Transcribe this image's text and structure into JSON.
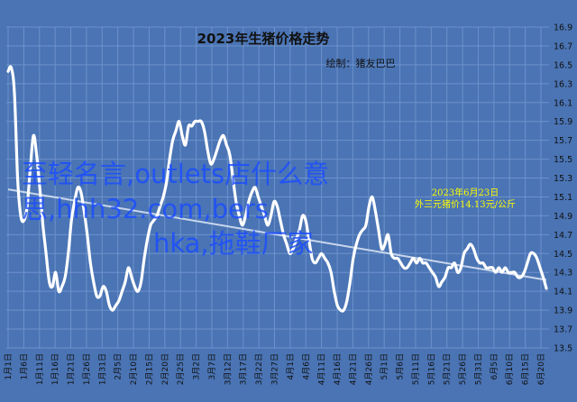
{
  "chart_data": {
    "type": "line",
    "title": "2023年生猪价格走势",
    "subtitle": "绘制：猪友巴巴",
    "xlabel": "",
    "ylabel": "",
    "ylim": [
      13.5,
      16.9
    ],
    "y_ticks": [
      13.5,
      13.7,
      13.9,
      14.1,
      14.3,
      14.5,
      14.7,
      14.9,
      15.1,
      15.3,
      15.5,
      15.7,
      15.9,
      16.1,
      16.3,
      16.5,
      16.7,
      16.9
    ],
    "y_tick_labels": [
      "13.5",
      "13.7",
      "13.9",
      "14.1",
      "14.3",
      "14.5",
      "14.7",
      "14.9",
      "15.1",
      "15.3",
      "15.5",
      "15.7",
      "15.9",
      "16.1",
      "16.3",
      "16.5",
      "16.7",
      "16.9"
    ],
    "x_tick_labels": [
      "1月1日",
      "1月6日",
      "1月11日",
      "1月16日",
      "1月21日",
      "1月26日",
      "1月31日",
      "2月5日",
      "2月10日",
      "2月15日",
      "2月20日",
      "2月25日",
      "3月2日",
      "3月7日",
      "3月12日",
      "3月17日",
      "3月22日",
      "3月27日",
      "4月1日",
      "4月6日",
      "4月11日",
      "4月16日",
      "4月21日",
      "4月26日",
      "5月1日",
      "5月6日",
      "5月11日",
      "5月16日",
      "5月21日",
      "5月26日",
      "5月31日",
      "6月5日",
      "6月10日",
      "6月15日",
      "6月20日"
    ],
    "series": [
      {
        "values": [
          16.43,
          16.47,
          16.2,
          15.3,
          14.9,
          14.85,
          15.0,
          15.4,
          15.75,
          15.55,
          15.2,
          14.8,
          14.5,
          14.2,
          14.15,
          14.3,
          14.1,
          14.15,
          14.25,
          14.5,
          14.85,
          15.05,
          15.2,
          15.15,
          14.95,
          14.7,
          14.4,
          14.2,
          14.05,
          14.05,
          14.15,
          14.1,
          13.95,
          13.9,
          13.95,
          14.0,
          14.1,
          14.2,
          14.35,
          14.25,
          14.15,
          14.1,
          14.2,
          14.45,
          14.65,
          14.8,
          14.85,
          14.9,
          15.0,
          15.1,
          15.25,
          15.5,
          15.7,
          15.8,
          15.9,
          15.75,
          15.65,
          15.85,
          15.85,
          15.9,
          15.9,
          15.9,
          15.8,
          15.6,
          15.45,
          15.5,
          15.6,
          15.7,
          15.75,
          15.65,
          15.55,
          15.3,
          15.05,
          14.9,
          14.8,
          14.9,
          15.05,
          15.15,
          15.2,
          15.1,
          15.0,
          14.9,
          14.8,
          14.9,
          15.05,
          15.0,
          14.85,
          14.7,
          14.6,
          14.5,
          14.55,
          14.65,
          14.75,
          14.9,
          14.85,
          14.65,
          14.45,
          14.4,
          14.45,
          14.5,
          14.45,
          14.4,
          14.3,
          14.1,
          13.95,
          13.9,
          13.9,
          14.0,
          14.2,
          14.45,
          14.6,
          14.7,
          14.75,
          14.8,
          15.0,
          15.1,
          14.95,
          14.75,
          14.55,
          14.6,
          14.7,
          14.5,
          14.45,
          14.45,
          14.4,
          14.35,
          14.35,
          14.4,
          14.45,
          14.4,
          14.45,
          14.4,
          14.4,
          14.35,
          14.3,
          14.25,
          14.15,
          14.2,
          14.25,
          14.35,
          14.35,
          14.4,
          14.3,
          14.35,
          14.5,
          14.55,
          14.6,
          14.55,
          14.45,
          14.4,
          14.4,
          14.35,
          14.35,
          14.35,
          14.3,
          14.35,
          14.3,
          14.35,
          14.3,
          14.3,
          14.3,
          14.25,
          14.25,
          14.3,
          14.4,
          14.5,
          14.5,
          14.45,
          14.35,
          14.25,
          14.13
        ]
      }
    ],
    "trendline": {
      "start": 15.18,
      "end": 14.22
    },
    "annotation": {
      "date": "2023年6月23日",
      "text": "外三元猪价14.13元/公斤"
    },
    "grid": true,
    "legend": "none"
  },
  "watermark": {
    "line1": "至轻名言,outlets店什么意",
    "line2": "思,hhh32.com,bers",
    "line3": "hka,拖鞋厂家"
  },
  "colors": {
    "background": "#4a74b4",
    "line": "#ffffff",
    "grid": "#6e92cb",
    "annotation": "#ffff00",
    "watermark": "#1a4cff",
    "text": "#111111"
  }
}
